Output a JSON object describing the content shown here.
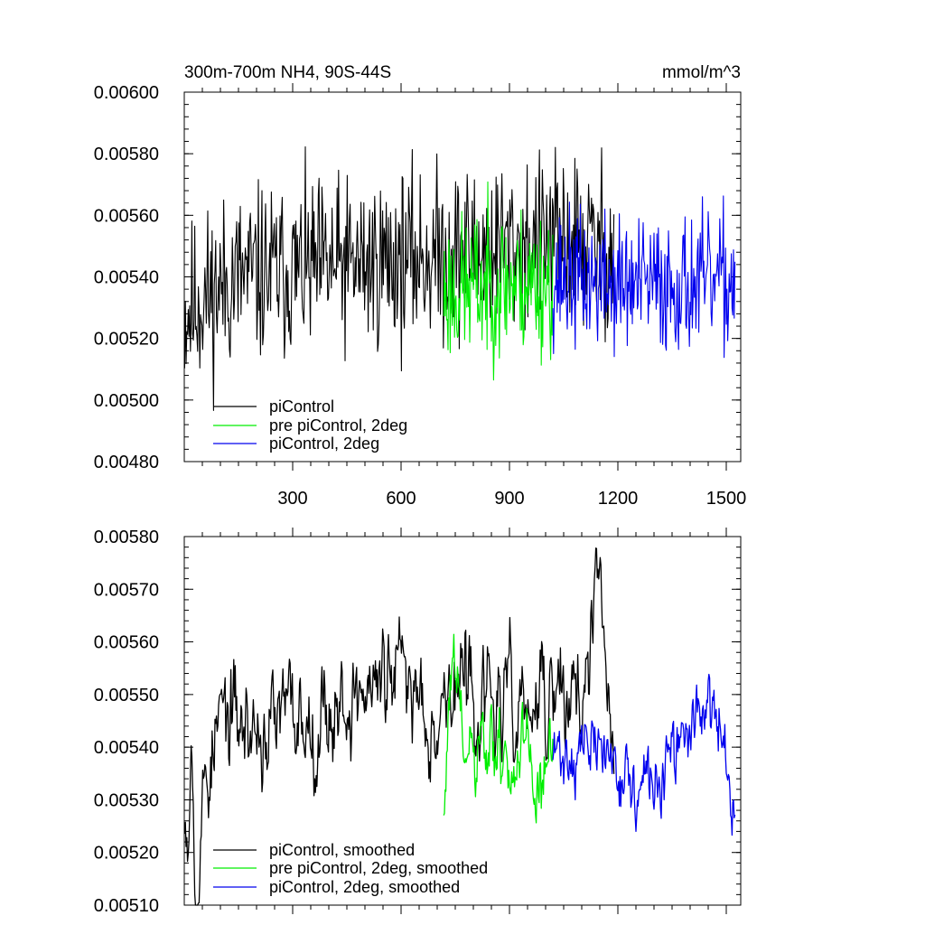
{
  "chart_data": [
    {
      "type": "line",
      "title": "300m-700m NH4, 90S-44S",
      "units": "mmol/m^3",
      "xlim": [
        0,
        1540
      ],
      "ylim": [
        0.0048,
        0.006
      ],
      "xticks": [
        300,
        600,
        900,
        1200,
        1500
      ],
      "xtick_labels": [
        "300",
        "600",
        "900",
        "1200",
        "1500"
      ],
      "yticks": [
        0.0048,
        0.005,
        0.0052,
        0.0054,
        0.0056,
        0.0058,
        0.006
      ],
      "ytick_labels": [
        "0.00480",
        "0.00500",
        "0.00520",
        "0.00540",
        "0.00560",
        "0.00580",
        "0.00600"
      ],
      "legend_position": "bottom-left",
      "series": [
        {
          "name": "piControl",
          "color": "#000000",
          "x_range": [
            1,
            1190
          ],
          "mean": 0.00541,
          "noise": 0.00014,
          "seed": 11,
          "trend": [
            [
              1,
              0.00528
            ],
            [
              40,
              0.00532
            ],
            [
              150,
              0.0054
            ],
            [
              400,
              0.00543
            ],
            [
              700,
              0.00547
            ],
            [
              900,
              0.0055
            ],
            [
              1100,
              0.00551
            ],
            [
              1190,
              0.00548
            ]
          ]
        },
        {
          "name": "pre piControl, 2deg",
          "color": "#00ee00",
          "x_range": [
            718,
            1020
          ],
          "mean": 0.00538,
          "noise": 0.00012,
          "seed": 23,
          "trend": [
            [
              718,
              0.00535
            ],
            [
              870,
              0.00538
            ],
            [
              1020,
              0.00538
            ]
          ]
        },
        {
          "name": "piControl, 2deg",
          "color": "#0000ee",
          "x_range": [
            1020,
            1525
          ],
          "mean": 0.00538,
          "noise": 0.00011,
          "seed": 37,
          "trend": [
            [
              1020,
              0.0054
            ],
            [
              1250,
              0.00537
            ],
            [
              1525,
              0.00538
            ]
          ]
        }
      ]
    },
    {
      "type": "line",
      "title": "",
      "xlim": [
        0,
        1540
      ],
      "ylim": [
        0.0051,
        0.0058
      ],
      "xticks": [
        300,
        600,
        900,
        1200,
        1500
      ],
      "yticks": [
        0.0051,
        0.0052,
        0.0053,
        0.0054,
        0.0055,
        0.0056,
        0.0057,
        0.0058
      ],
      "ytick_labels": [
        "0.00510",
        "0.00520",
        "0.00530",
        "0.00540",
        "0.00550",
        "0.00560",
        "0.00570",
        "0.00580"
      ],
      "legend_position": "bottom-left",
      "series": [
        {
          "name": "piControl, smoothed",
          "color": "#000000",
          "x_range": [
            1,
            1190
          ],
          "noise": 6e-05,
          "seed": 53,
          "trend": [
            [
              1,
              0.00532
            ],
            [
              10,
              0.00528
            ],
            [
              20,
              0.00546
            ],
            [
              35,
              0.00515
            ],
            [
              60,
              0.00535
            ],
            [
              100,
              0.00545
            ],
            [
              200,
              0.00543
            ],
            [
              300,
              0.00545
            ],
            [
              400,
              0.00548
            ],
            [
              600,
              0.00553
            ],
            [
              700,
              0.00548
            ],
            [
              750,
              0.00552
            ],
            [
              850,
              0.00548
            ],
            [
              950,
              0.00546
            ],
            [
              1050,
              0.0055
            ],
            [
              1120,
              0.00552
            ],
            [
              1150,
              0.00572
            ],
            [
              1190,
              0.00532
            ]
          ]
        },
        {
          "name": "pre piControl, 2deg, smoothed",
          "color": "#00ee00",
          "x_range": [
            718,
            1020
          ],
          "noise": 5e-05,
          "seed": 61,
          "trend": [
            [
              718,
              0.00526
            ],
            [
              740,
              0.00556
            ],
            [
              780,
              0.00536
            ],
            [
              870,
              0.00538
            ],
            [
              960,
              0.00535
            ],
            [
              1020,
              0.00536
            ]
          ]
        },
        {
          "name": "piControl, 2deg, smoothed",
          "color": "#0000ee",
          "x_range": [
            1020,
            1525
          ],
          "noise": 4e-05,
          "seed": 71,
          "trend": [
            [
              1020,
              0.00538
            ],
            [
              1100,
              0.0054
            ],
            [
              1200,
              0.00538
            ],
            [
              1250,
              0.0053
            ],
            [
              1350,
              0.00536
            ],
            [
              1420,
              0.00548
            ],
            [
              1460,
              0.00545
            ],
            [
              1490,
              0.0054
            ],
            [
              1525,
              0.00532
            ]
          ]
        }
      ]
    }
  ]
}
